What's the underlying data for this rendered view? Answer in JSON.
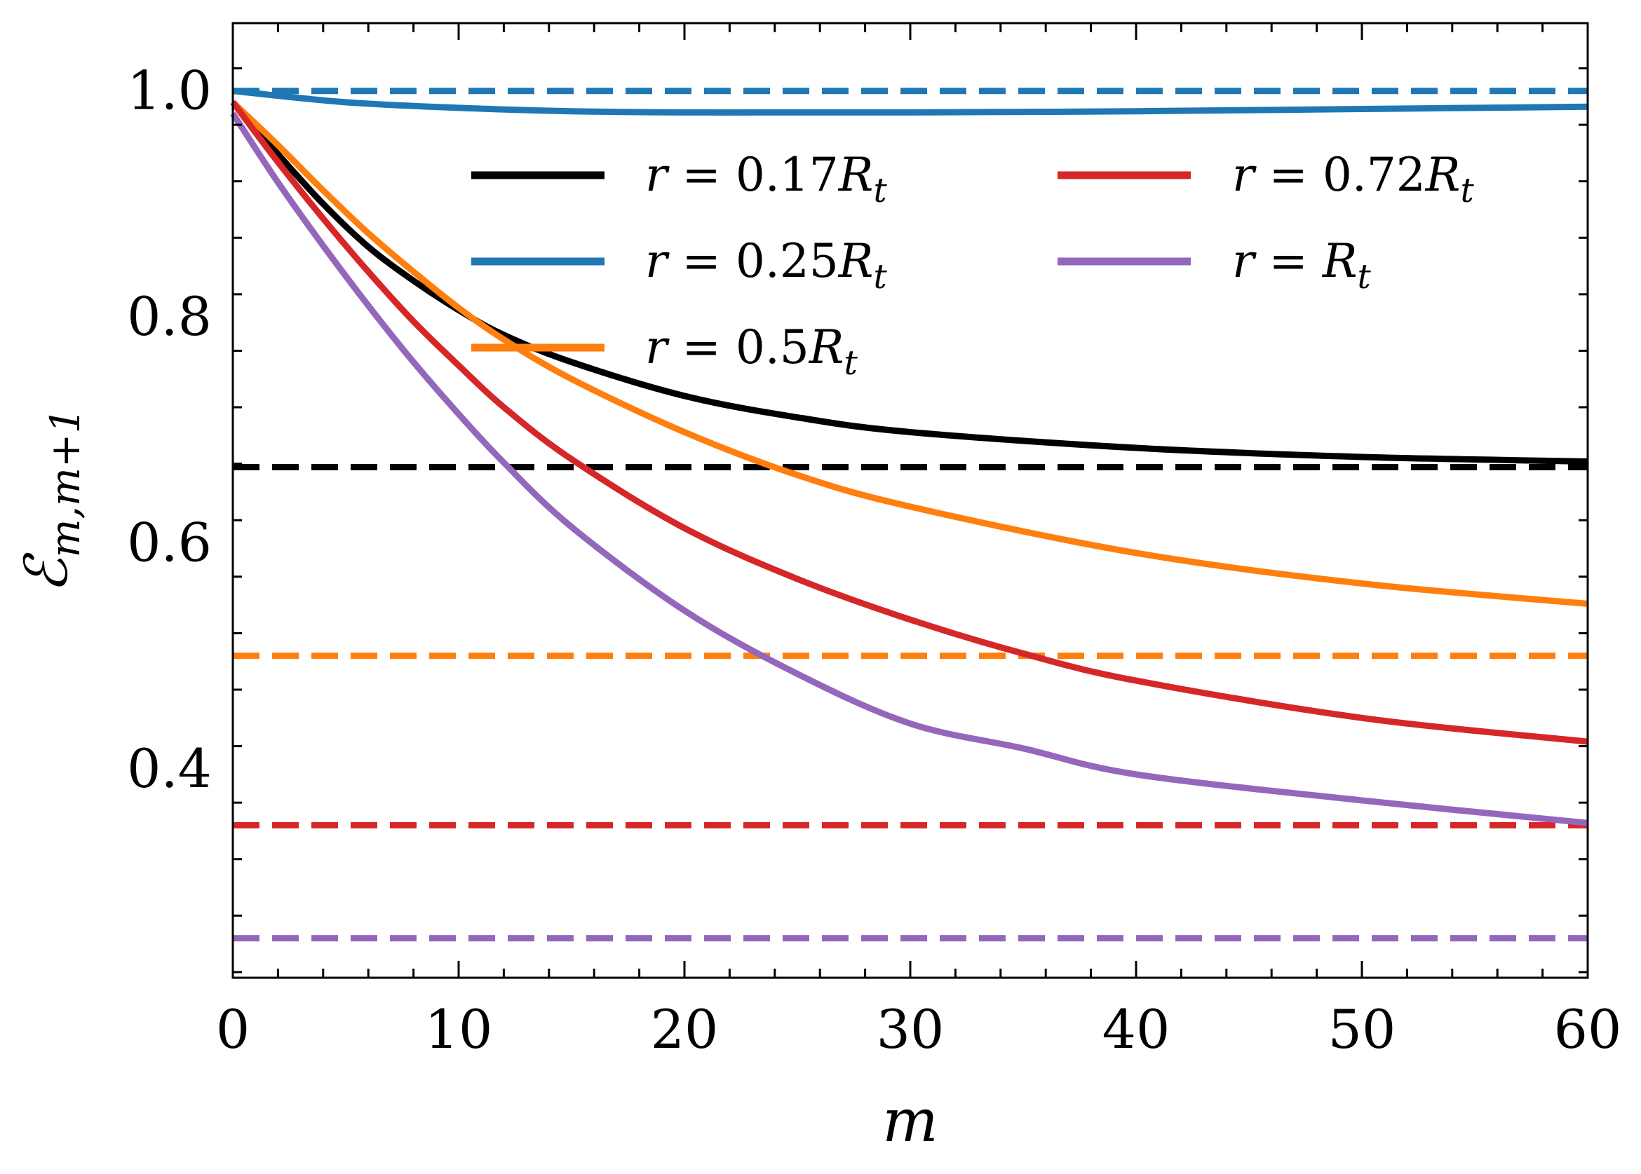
{
  "chart_data": {
    "type": "line",
    "title": "",
    "xlabel": "m",
    "ylabel": "ℰm,m+1",
    "xlim": [
      0,
      60
    ],
    "ylim": [
      0.215,
      1.06
    ],
    "xticks": [
      0,
      10,
      20,
      30,
      40,
      50,
      60
    ],
    "xtick_labels": [
      "0",
      "10",
      "20",
      "30",
      "40",
      "50",
      "60"
    ],
    "yticks": [
      0.4,
      0.6,
      0.8,
      1.0
    ],
    "ytick_labels": [
      "0.4",
      "0.6",
      "0.8",
      "1.0"
    ],
    "legend_position": "upper-center, two columns",
    "series": [
      {
        "name": "r = 0.17Rt",
        "color": "#000000",
        "x": [
          0,
          2,
          4,
          6,
          8,
          10,
          12,
          15,
          20,
          25,
          30,
          40,
          50,
          60
        ],
        "values": [
          0.99,
          0.944,
          0.9,
          0.862,
          0.832,
          0.806,
          0.784,
          0.76,
          0.73,
          0.711,
          0.698,
          0.684,
          0.676,
          0.672
        ],
        "asymptote": 0.667
      },
      {
        "name": "r = 0.25Rt",
        "color": "#1f77b4",
        "x": [
          0,
          5,
          10,
          15,
          20,
          25,
          30,
          40,
          50,
          60
        ],
        "values": [
          1.0,
          0.99,
          0.985,
          0.982,
          0.981,
          0.981,
          0.981,
          0.982,
          0.984,
          0.986
        ],
        "asymptote": 1.0
      },
      {
        "name": "r = 0.5Rt",
        "color": "#ff7f0e",
        "x": [
          0,
          2,
          4,
          6,
          8,
          10,
          12,
          15,
          20,
          25,
          30,
          40,
          50,
          60
        ],
        "values": [
          0.99,
          0.952,
          0.912,
          0.874,
          0.84,
          0.808,
          0.78,
          0.745,
          0.698,
          0.66,
          0.632,
          0.591,
          0.564,
          0.546
        ],
        "asymptote": 0.5
      },
      {
        "name": "r = 0.72Rt",
        "color": "#d62728",
        "x": [
          0,
          2,
          4,
          6,
          8,
          10,
          12,
          15,
          20,
          25,
          30,
          35,
          40,
          50,
          60
        ],
        "values": [
          0.99,
          0.937,
          0.887,
          0.84,
          0.796,
          0.757,
          0.72,
          0.674,
          0.613,
          0.568,
          0.532,
          0.502,
          0.478,
          0.445,
          0.424
        ],
        "asymptote": 0.35
      },
      {
        "name": "r = Rt",
        "color": "#9467bd",
        "x": [
          0,
          2,
          4,
          6,
          8,
          10,
          12,
          15,
          20,
          25,
          30,
          35,
          40,
          50,
          60
        ],
        "values": [
          0.98,
          0.919,
          0.863,
          0.81,
          0.76,
          0.714,
          0.671,
          0.614,
          0.54,
          0.484,
          0.44,
          0.418,
          0.395,
          0.372,
          0.352
        ],
        "asymptote": 0.25
      }
    ]
  },
  "legend": {
    "entries": [
      {
        "prefix": "r = 0.17",
        "var": "R",
        "sub": "t",
        "color": "#000000"
      },
      {
        "prefix": "r = 0.25",
        "var": "R",
        "sub": "t",
        "color": "#1f77b4"
      },
      {
        "prefix": "r = 0.5",
        "var": "R",
        "sub": "t",
        "color": "#ff7f0e"
      },
      {
        "prefix": "r = 0.72",
        "var": "R",
        "sub": "t",
        "color": "#d62728"
      },
      {
        "prefix": "r = ",
        "var": "R",
        "sub": "t",
        "color": "#9467bd"
      }
    ]
  },
  "ylabel_parts": {
    "main": "ℰ",
    "sub": "m,m+1"
  }
}
